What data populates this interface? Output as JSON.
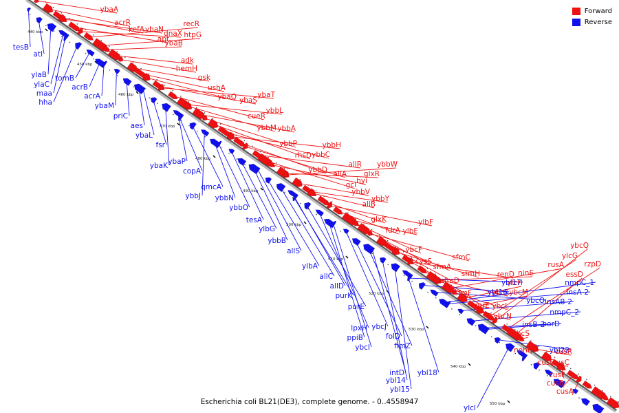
{
  "caption": "Escherichia coli BL21(DE3), complete genome. - 0..4558947",
  "legend": [
    {
      "label": "Forward",
      "color": "#ee1111"
    },
    {
      "label": "Reverse",
      "color": "#1111ee"
    }
  ],
  "colors": {
    "forward": "#ee1111",
    "reverse": "#1111ee",
    "backbone": "#888888"
  },
  "kbp_ticks": [
    "440 kbp",
    "450 kbp",
    "460 kbp",
    "470 kbp",
    "480 kbp",
    "490 kbp",
    "500 kbp",
    "510 kbp",
    "520 kbp",
    "530 kbp",
    "540 kbp",
    "550 kbp"
  ],
  "forward_genes": [
    "ybaA",
    "acrR",
    "kefA",
    "ybaN",
    "apt",
    "dnaX",
    "recR",
    "htpG",
    "ybaB",
    "adk",
    "hemH",
    "gsk",
    "ushA",
    "ybaQ",
    "ybaS",
    "ybaT",
    "cueR",
    "ybbL",
    "ybbM",
    "ybbA",
    "ybbP",
    "rhsD",
    "ybbC",
    "ybbH",
    "ybbD",
    "allA",
    "allR",
    "gcl",
    "hyi",
    "glxR",
    "ybbW",
    "ybbV",
    "ybbY",
    "allB",
    "glxK",
    "ylbF",
    "fdrA",
    "ylbE",
    "ybcF",
    "cysS",
    "sfmC",
    "sfmA",
    "sfmD",
    "sfmH",
    "sfmF",
    "renD",
    "emrE",
    "ybcK",
    "ninE",
    "rusA",
    "ybcL",
    "ylcH",
    "ybcM",
    "ybcN",
    "ylcG",
    "ybcQ",
    "rzpD",
    "essD",
    "ybcS",
    "nohB",
    "cusR",
    "cusS",
    "cusC",
    "cusF",
    "cusB",
    "cusA"
  ],
  "reverse_genes": [
    "tesB",
    "atl",
    "ylaB",
    "ylaC",
    "maa",
    "hha",
    "tomB",
    "acrB",
    "acrA",
    "ybaM",
    "priC",
    "aes",
    "ybaL",
    "fsr",
    "ybaK",
    "ybaP",
    "copA",
    "qmcA",
    "ybbJ",
    "ybbN",
    "ybbO",
    "tesA",
    "ylbG",
    "ybbB",
    "allS",
    "ylbA",
    "allC",
    "allD",
    "purK",
    "purE",
    "lpxH",
    "ppiB",
    "ybcI",
    "ybcJ",
    "folD",
    "fimZ",
    "intD",
    "ybl14",
    "ybl15",
    "ybl18",
    "ybl17",
    "ybl16",
    "ybcO",
    "nmpC_1",
    "insA-2",
    "insAB-2",
    "nmpC_2",
    "insB-2",
    "borD",
    "ybl22",
    "ylcI"
  ]
}
